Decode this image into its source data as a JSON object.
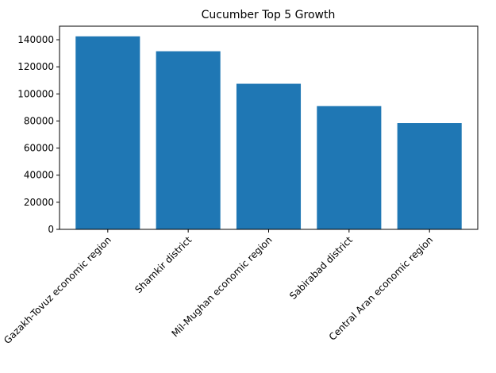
{
  "chart_data": {
    "type": "bar",
    "title": "Cucumber Top 5 Growth",
    "xlabel": "",
    "ylabel": "",
    "categories": [
      "Gazakh-Tovuz economic region",
      "Shamkir district",
      "Mil-Mughan economic region",
      "Sabirabad district",
      "Central Aran economic region"
    ],
    "values": [
      142500,
      131500,
      107500,
      91000,
      78500
    ],
    "ylim": [
      0,
      150000
    ],
    "yticks": [
      0,
      20000,
      40000,
      60000,
      80000,
      100000,
      120000,
      140000
    ],
    "ytick_labels": [
      "0",
      "20000",
      "40000",
      "60000",
      "80000",
      "100000",
      "120000",
      "140000"
    ],
    "bar_color": "#1f77b4",
    "grid": false,
    "legend": "none",
    "xtick_rotation": 45
  }
}
